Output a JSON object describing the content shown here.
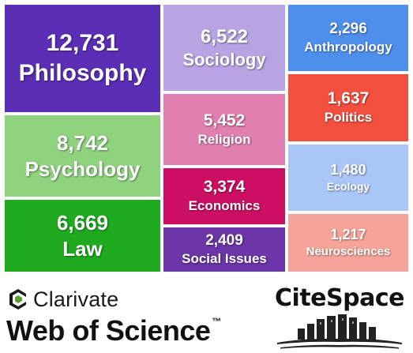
{
  "chart_data": {
    "type": "treemap",
    "items": [
      {
        "label": "Philosophy",
        "value": "12,731",
        "color": "#5b2fb5"
      },
      {
        "label": "Psychology",
        "value": "8,742",
        "color": "#8fd37f"
      },
      {
        "label": "Law",
        "value": "6,669",
        "color": "#1faa1f"
      },
      {
        "label": "Sociology",
        "value": "6,522",
        "color": "#b8a4e3"
      },
      {
        "label": "Religion",
        "value": "5,452",
        "color": "#e07fb0"
      },
      {
        "label": "Economics",
        "value": "3,374",
        "color": "#cc0f63"
      },
      {
        "label": "Social Issues",
        "value": "2,409",
        "color": "#6c35a8"
      },
      {
        "label": "Anthropology",
        "value": "2,296",
        "color": "#4f8fec"
      },
      {
        "label": "Politics",
        "value": "1,637",
        "color": "#f2503f"
      },
      {
        "label": "Ecology",
        "value": "1,480",
        "color": "#a9c6f7"
      },
      {
        "label": "Neurosciences",
        "value": "1,217",
        "color": "#f6a49b"
      }
    ]
  },
  "footer": {
    "clarivate": "Clarivate",
    "web_of_science": "Web of Science",
    "trademark": "™",
    "citespace": "CiteSpace"
  }
}
